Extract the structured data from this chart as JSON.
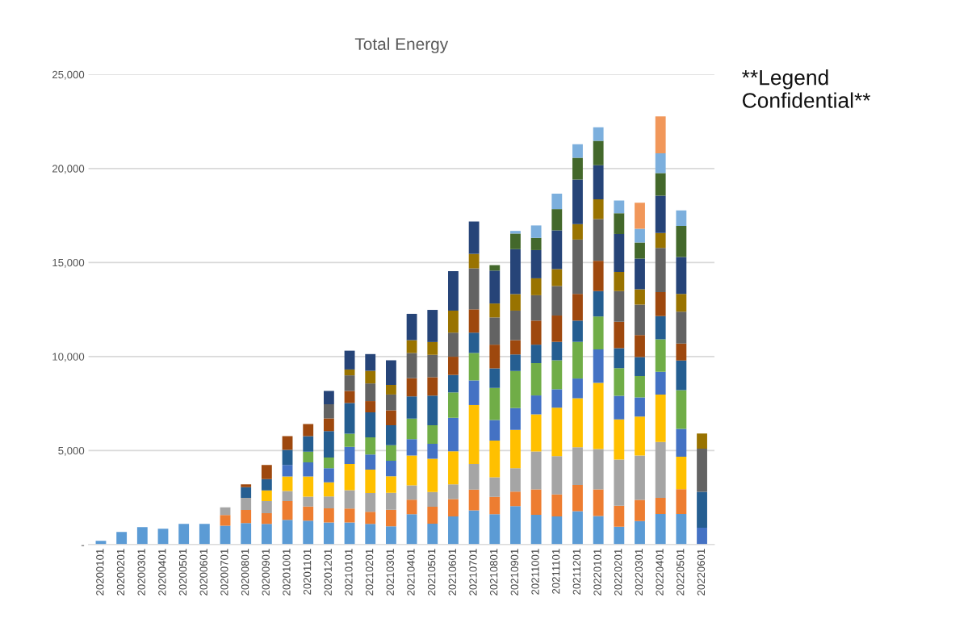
{
  "chart_data": {
    "type": "bar",
    "stacked": true,
    "title": "Total Energy",
    "annotations": [
      "**Legend\nConfidential**"
    ],
    "categories": [
      "20200101",
      "20200201",
      "20200301",
      "20200401",
      "20200501",
      "20200601",
      "20200701",
      "20200801",
      "20200901",
      "20201001",
      "20201101",
      "20201201",
      "20210101",
      "20210201",
      "20210301",
      "20210401",
      "20210501",
      "20210601",
      "20210701",
      "20210801",
      "20210901",
      "20211001",
      "20211101",
      "20211201",
      "20220101",
      "20220201",
      "20220301",
      "20220401",
      "20220501",
      "20220601"
    ],
    "ylim": [
      0,
      25000
    ],
    "yticks": [
      {
        "value": 0,
        "label": "-"
      },
      {
        "value": 5000,
        "label": "5,000"
      },
      {
        "value": 10000,
        "label": "10,000"
      },
      {
        "value": 15000,
        "label": "15,000"
      },
      {
        "value": 20000,
        "label": "20,000"
      },
      {
        "value": 25000,
        "label": "25,000"
      }
    ],
    "grid": "y",
    "series": [
      {
        "color": "#5b9bd5",
        "values": [
          200,
          670,
          930,
          840,
          1100,
          1100,
          1000,
          1140,
          1100,
          1310,
          1270,
          1170,
          1170,
          1100,
          970,
          1610,
          1110,
          1500,
          1820,
          1610,
          2040,
          1580,
          1500,
          1770,
          1520,
          950,
          1250,
          1630,
          1630,
          null
        ]
      },
      {
        "color": "#ed7d31",
        "values": [
          null,
          null,
          null,
          null,
          null,
          null,
          570,
          700,
          570,
          1000,
          750,
          760,
          740,
          640,
          880,
          780,
          900,
          920,
          1100,
          930,
          780,
          1350,
          1170,
          1400,
          1410,
          1110,
          1130,
          850,
          1310,
          null
        ]
      },
      {
        "color": "#a5a5a5",
        "values": [
          null,
          null,
          null,
          null,
          null,
          null,
          410,
          640,
          640,
          540,
          530,
          630,
          980,
          1000,
          900,
          760,
          780,
          780,
          1370,
          1040,
          1240,
          2020,
          2030,
          2010,
          2150,
          2460,
          2360,
          2970,
          null,
          null
        ]
      },
      {
        "color": "#ffc000",
        "values": [
          null,
          null,
          null,
          null,
          null,
          null,
          null,
          null,
          570,
          770,
          1070,
          750,
          1400,
          1250,
          880,
          1590,
          1770,
          1760,
          3130,
          1950,
          2040,
          1970,
          2580,
          2600,
          3520,
          2140,
          2070,
          2530,
          1730,
          null
        ]
      },
      {
        "color": "#4472c4",
        "values": [
          null,
          null,
          null,
          null,
          null,
          null,
          null,
          null,
          null,
          610,
          750,
          750,
          910,
          800,
          830,
          860,
          800,
          1780,
          1310,
          1090,
          1160,
          1010,
          980,
          1050,
          1780,
          1250,
          1020,
          1210,
          1480,
          900
        ]
      },
      {
        "color": "#70ad47",
        "values": [
          null,
          null,
          null,
          null,
          null,
          null,
          null,
          null,
          null,
          null,
          570,
          570,
          690,
          910,
          820,
          1100,
          990,
          1350,
          1460,
          1710,
          1970,
          1720,
          1540,
          1950,
          1750,
          1470,
          1130,
          1730,
          2060,
          null
        ]
      },
      {
        "color": "#255e91",
        "values": [
          null,
          null,
          null,
          null,
          null,
          null,
          null,
          570,
          600,
          810,
          830,
          1400,
          1640,
          1330,
          1060,
          1180,
          1570,
          930,
          1080,
          1040,
          880,
          980,
          980,
          1130,
          1350,
          1060,
          1010,
          1230,
          1580,
          1900
        ]
      },
      {
        "color": "#9e480e",
        "values": [
          null,
          null,
          null,
          null,
          null,
          null,
          null,
          150,
          750,
          730,
          640,
          680,
          640,
          600,
          800,
          970,
          980,
          970,
          1240,
          1260,
          760,
          1280,
          1400,
          1420,
          1610,
          1410,
          1170,
          1280,
          900,
          null
        ]
      },
      {
        "color": "#636363",
        "values": [
          null,
          null,
          null,
          null,
          null,
          null,
          null,
          null,
          null,
          null,
          null,
          750,
          830,
          940,
          840,
          1340,
          1190,
          1280,
          2180,
          1450,
          1570,
          1350,
          1570,
          2890,
          2220,
          1630,
          1620,
          2350,
          1700,
          2300
        ]
      },
      {
        "color": "#997300",
        "values": [
          null,
          null,
          null,
          null,
          null,
          null,
          null,
          null,
          null,
          null,
          null,
          null,
          310,
          670,
          510,
          680,
          680,
          1170,
          770,
          740,
          880,
          900,
          900,
          820,
          1050,
          1020,
          820,
          790,
          940,
          800
        ]
      },
      {
        "color": "#264478",
        "values": [
          null,
          null,
          null,
          null,
          null,
          null,
          null,
          null,
          null,
          null,
          null,
          710,
          1000,
          890,
          1310,
          1400,
          1710,
          2100,
          1720,
          1750,
          2390,
          1500,
          2060,
          2370,
          1810,
          2020,
          1630,
          1980,
          1960,
          null
        ]
      },
      {
        "color": "#43682b",
        "values": [
          null,
          null,
          null,
          null,
          null,
          null,
          null,
          null,
          null,
          null,
          null,
          null,
          null,
          null,
          null,
          null,
          null,
          null,
          null,
          290,
          830,
          650,
          1130,
          1160,
          1300,
          1100,
          860,
          1210,
          1650,
          null
        ]
      },
      {
        "color": "#7cafdd",
        "values": [
          null,
          null,
          null,
          null,
          null,
          null,
          null,
          null,
          null,
          null,
          null,
          null,
          null,
          null,
          null,
          null,
          null,
          null,
          null,
          null,
          140,
          660,
          820,
          720,
          720,
          680,
          720,
          1050,
          830,
          null
        ]
      },
      {
        "color": "#f1975a",
        "values": [
          null,
          null,
          null,
          null,
          null,
          null,
          null,
          null,
          null,
          null,
          null,
          null,
          null,
          null,
          null,
          null,
          null,
          null,
          null,
          null,
          null,
          null,
          null,
          null,
          null,
          null,
          1390,
          1960,
          null,
          null
        ]
      }
    ]
  }
}
